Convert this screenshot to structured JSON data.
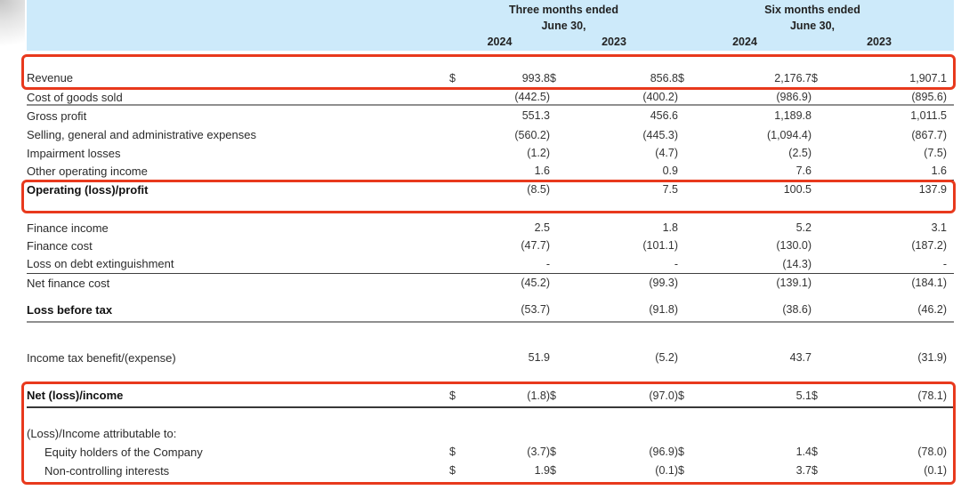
{
  "document": {
    "currency_symbol": "$",
    "header": {
      "period_groups": [
        {
          "title": "Three months ended",
          "subtitle": "June 30,",
          "years": [
            "2024",
            "2023"
          ]
        },
        {
          "title": "Six months ended",
          "subtitle": "June 30,",
          "years": [
            "2024",
            "2023"
          ]
        }
      ]
    },
    "rows": [
      {
        "label": "Revenue",
        "dollar": true,
        "values": [
          "993.8",
          "856.8",
          "2,176.7",
          "1,907.1"
        ],
        "cls": "h44 vbottom",
        "highlighted": true
      },
      {
        "label": "Cost of goods sold",
        "values": [
          "(442.5)",
          "(400.2)",
          "(986.9)",
          "(895.6)"
        ],
        "rule": "gray",
        "cls": "h18"
      },
      {
        "label": "Gross profit",
        "values": [
          "551.3",
          "456.6",
          "1,189.8",
          "1,011.5"
        ],
        "cls": "h22"
      },
      {
        "label": "Selling, general and administrative expenses",
        "values": [
          "(560.2)",
          "(445.3)",
          "(1,094.4)",
          "(867.7)"
        ],
        "cls": "h21"
      },
      {
        "label": "Impairment losses",
        "values": [
          "(1.2)",
          "(4.7)",
          "(2.5)",
          "(7.5)"
        ],
        "cls": "h20"
      },
      {
        "label": "Other operating income",
        "values": [
          "1.6",
          "0.9",
          "7.6",
          "1.6"
        ],
        "rule": "dark",
        "cls": "h21"
      },
      {
        "label": "Operating (loss)/profit",
        "bold": true,
        "values": [
          "(8.5)",
          "7.5",
          "100.5",
          "137.9"
        ],
        "cls": "h37 vtop",
        "highlighted": true
      },
      {
        "gap": 6
      },
      {
        "label": "Finance income",
        "values": [
          "2.5",
          "1.8",
          "5.2",
          "3.1"
        ],
        "cls": "h20"
      },
      {
        "label": "Finance cost",
        "values": [
          "(47.7)",
          "(101.1)",
          "(130.0)",
          "(187.2)"
        ],
        "cls": "h20"
      },
      {
        "label": "Loss on debt extinguishment",
        "values": [
          "-",
          "-",
          "(14.3)",
          "-"
        ],
        "rule": "dark",
        "cls": "h22"
      },
      {
        "label": "Net finance cost",
        "values": [
          "(45.2)",
          "(99.3)",
          "(139.1)",
          "(184.1)"
        ],
        "cls": "h20"
      },
      {
        "gap": 10
      },
      {
        "label": "Loss before tax",
        "bold": true,
        "values": [
          "(53.7)",
          "(91.8)",
          "(38.6)",
          "(46.2)"
        ],
        "rule": "gray",
        "cls": "h25 pb3"
      },
      {
        "gap": 29
      },
      {
        "label": "Income tax benefit/(expense)",
        "values": [
          "51.9",
          "(5.2)",
          "43.7",
          "(31.9)"
        ],
        "cls": "h20"
      },
      {
        "gap": 20
      },
      {
        "label": "Net (loss)/income",
        "bold": true,
        "dollar": true,
        "values": [
          "(1.8)",
          "(97.0)",
          "5.1",
          "(78.1)"
        ],
        "rule": "heavy",
        "cls": "h27",
        "highlighted": true
      },
      {
        "gap": 18
      },
      {
        "label": "(Loss)/Income attributable to:",
        "values": [
          "",
          "",
          "",
          ""
        ],
        "cls": "h21",
        "highlighted": true
      },
      {
        "label": "Equity holders of the Company",
        "indent": true,
        "dollar": true,
        "values": [
          "(3.7)",
          "(96.9)",
          "1.4",
          "(78.0)"
        ],
        "cls": "h20",
        "highlighted": true
      },
      {
        "label": "Non-controlling interests",
        "indent": true,
        "dollar": true,
        "values": [
          "1.9",
          "(0.1)",
          "3.7",
          "(0.1)"
        ],
        "cls": "h22",
        "highlighted": true
      }
    ]
  },
  "colors": {
    "header_bg": "#cdeafa",
    "highlight_border": "#e8391d",
    "rule_gray": "#8f8f8f",
    "rule_dark": "#3f3f3f",
    "text": "#2b2b2b"
  }
}
